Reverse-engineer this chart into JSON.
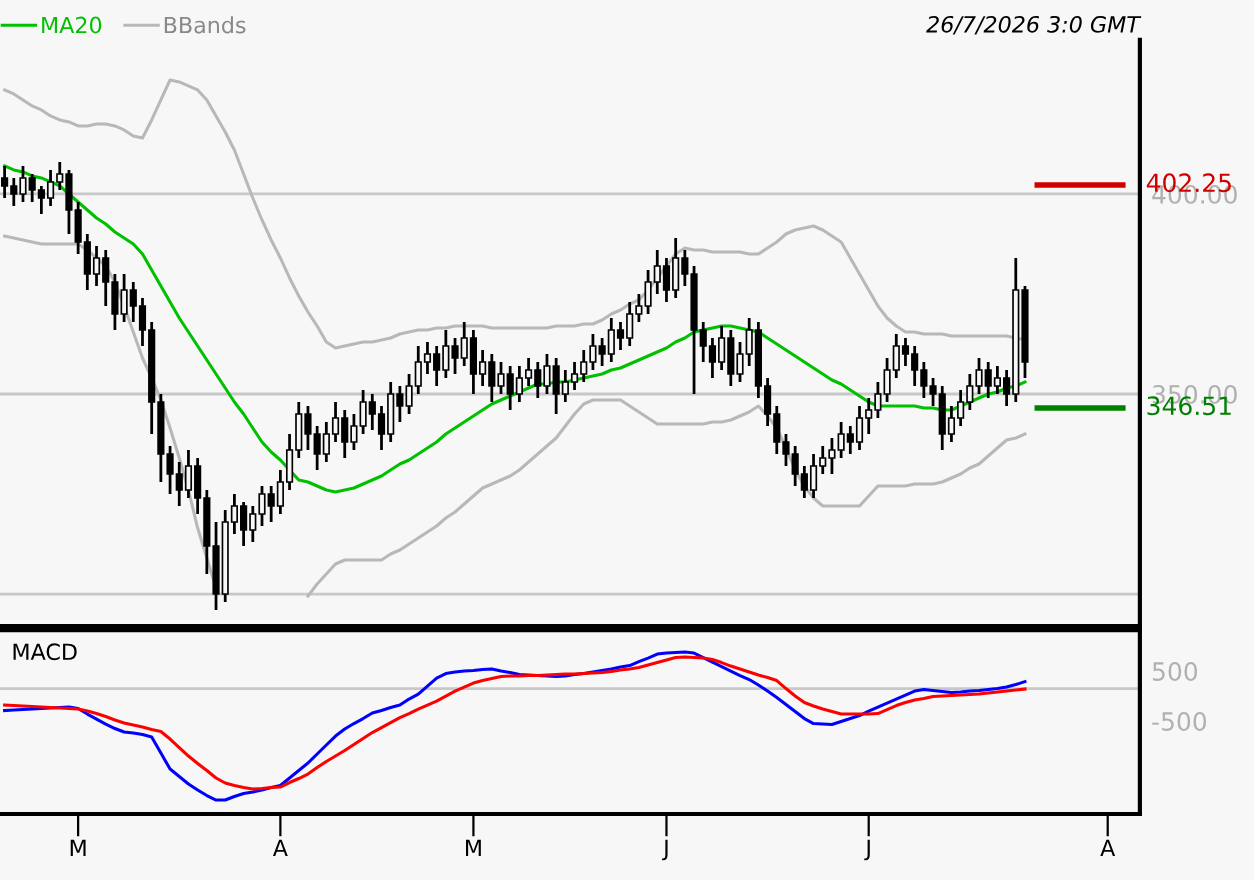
{
  "chart_data": [
    {
      "type": "candlestick",
      "annotations": [
        "26/7/2026 3:0 GMT"
      ],
      "categories": [
        null,
        null,
        null,
        null,
        null,
        null,
        null,
        null,
        null,
        null,
        null,
        null,
        null,
        null,
        null,
        null,
        null,
        null,
        null,
        null,
        null,
        null,
        null,
        null,
        null,
        null,
        null,
        null,
        null,
        null,
        null,
        null,
        null,
        null,
        null,
        null,
        null,
        null,
        null,
        null,
        null,
        null,
        null,
        null,
        null,
        null,
        null,
        null,
        null,
        null,
        null,
        null,
        null,
        null,
        null,
        null,
        null,
        null,
        null,
        null,
        null,
        null,
        null,
        null,
        null,
        null,
        null,
        null,
        null,
        null,
        null,
        null,
        null,
        null,
        null,
        null,
        null,
        null,
        null,
        null,
        null,
        null,
        null,
        null,
        null,
        null,
        null,
        null,
        null,
        null,
        null,
        null,
        null,
        null,
        null,
        null,
        null,
        null,
        null,
        null,
        null,
        null,
        null,
        null,
        null,
        null,
        null,
        null,
        null,
        null,
        null,
        null,
        null,
        null,
        null,
        null,
        null,
        null,
        null,
        null,
        null,
        null,
        null,
        null
      ],
      "ohlc": [
        [
          404,
          407,
          399,
          402
        ],
        [
          402,
          404,
          397,
          400
        ],
        [
          400,
          407,
          398,
          404
        ],
        [
          404,
          405,
          398,
          401
        ],
        [
          401,
          402,
          395,
          399
        ],
        [
          399,
          406,
          397,
          403
        ],
        [
          403,
          408,
          401,
          405
        ],
        [
          405,
          406,
          390,
          396
        ],
        [
          396,
          398,
          385,
          388
        ],
        [
          388,
          390,
          376,
          380
        ],
        [
          380,
          387,
          377,
          384
        ],
        [
          384,
          386,
          372,
          378
        ],
        [
          378,
          380,
          366,
          370
        ],
        [
          370,
          380,
          368,
          376
        ],
        [
          376,
          378,
          368,
          372
        ],
        [
          372,
          374,
          362,
          366
        ],
        [
          366,
          368,
          340,
          348
        ],
        [
          348,
          350,
          328,
          335
        ],
        [
          335,
          337,
          325,
          330
        ],
        [
          330,
          333,
          322,
          326
        ],
        [
          326,
          336,
          324,
          332
        ],
        [
          332,
          334,
          320,
          324
        ],
        [
          324,
          326,
          305,
          312
        ],
        [
          312,
          318,
          296,
          300
        ],
        [
          300,
          321,
          298,
          318
        ],
        [
          318,
          325,
          315,
          322
        ],
        [
          322,
          323,
          312,
          316
        ],
        [
          316,
          322,
          313,
          320
        ],
        [
          320,
          327,
          317,
          325
        ],
        [
          325,
          327,
          318,
          322
        ],
        [
          322,
          331,
          320,
          328
        ],
        [
          328,
          340,
          326,
          336
        ],
        [
          336,
          348,
          334,
          345
        ],
        [
          345,
          347,
          336,
          340
        ],
        [
          340,
          342,
          331,
          335
        ],
        [
          335,
          343,
          333,
          340
        ],
        [
          340,
          348,
          338,
          344
        ],
        [
          344,
          346,
          334,
          338
        ],
        [
          338,
          345,
          336,
          342
        ],
        [
          342,
          351,
          340,
          348
        ],
        [
          348,
          350,
          341,
          345
        ],
        [
          345,
          347,
          336,
          340
        ],
        [
          340,
          353,
          338,
          350
        ],
        [
          350,
          352,
          343,
          347
        ],
        [
          347,
          355,
          345,
          352
        ],
        [
          352,
          362,
          350,
          358
        ],
        [
          358,
          363,
          355,
          360
        ],
        [
          360,
          362,
          352,
          356
        ],
        [
          356,
          366,
          354,
          362
        ],
        [
          362,
          364,
          355,
          359
        ],
        [
          359,
          368,
          357,
          364
        ],
        [
          364,
          366,
          350,
          355
        ],
        [
          355,
          361,
          352,
          358
        ],
        [
          358,
          360,
          348,
          352
        ],
        [
          352,
          358,
          350,
          355
        ],
        [
          355,
          357,
          346,
          350
        ],
        [
          350,
          357,
          348,
          354
        ],
        [
          354,
          359,
          352,
          356
        ],
        [
          356,
          358,
          349,
          352
        ],
        [
          352,
          360,
          350,
          357
        ],
        [
          357,
          359,
          345,
          350
        ],
        [
          350,
          356,
          348,
          353
        ],
        [
          353,
          358,
          351,
          355
        ],
        [
          355,
          361,
          353,
          358
        ],
        [
          358,
          365,
          356,
          362
        ],
        [
          362,
          364,
          357,
          360
        ],
        [
          360,
          369,
          358,
          366
        ],
        [
          366,
          368,
          361,
          364
        ],
        [
          364,
          373,
          362,
          370
        ],
        [
          370,
          375,
          368,
          372
        ],
        [
          372,
          381,
          370,
          378
        ],
        [
          378,
          386,
          375,
          382
        ],
        [
          382,
          384,
          373,
          376
        ],
        [
          376,
          389,
          374,
          384
        ],
        [
          384,
          386,
          377,
          380
        ],
        [
          380,
          382,
          350,
          366
        ],
        [
          366,
          368,
          358,
          362
        ],
        [
          362,
          364,
          354,
          358
        ],
        [
          358,
          367,
          356,
          364
        ],
        [
          364,
          366,
          352,
          355
        ],
        [
          355,
          363,
          353,
          360
        ],
        [
          360,
          369,
          357,
          366
        ],
        [
          366,
          368,
          349,
          352
        ],
        [
          352,
          354,
          342,
          345
        ],
        [
          345,
          347,
          335,
          338
        ],
        [
          338,
          340,
          332,
          335
        ],
        [
          335,
          337,
          327,
          330
        ],
        [
          330,
          332,
          324,
          326
        ],
        [
          326,
          335,
          324,
          332
        ],
        [
          332,
          337,
          330,
          334
        ],
        [
          334,
          339,
          330,
          336
        ],
        [
          336,
          343,
          334,
          340
        ],
        [
          340,
          342,
          335,
          338
        ],
        [
          338,
          347,
          336,
          344
        ],
        [
          344,
          349,
          340,
          346
        ],
        [
          346,
          353,
          344,
          350
        ],
        [
          350,
          359,
          348,
          356
        ],
        [
          356,
          365,
          354,
          362
        ],
        [
          362,
          364,
          357,
          360
        ],
        [
          360,
          362,
          352,
          356
        ],
        [
          356,
          358,
          349,
          352
        ],
        [
          352,
          354,
          347,
          350
        ],
        [
          350,
          352,
          336,
          340
        ],
        [
          340,
          347,
          338,
          344
        ],
        [
          344,
          351,
          342,
          348
        ],
        [
          348,
          355,
          346,
          352
        ],
        [
          352,
          359,
          350,
          356
        ],
        [
          356,
          358,
          349,
          352
        ],
        [
          352,
          357,
          350,
          354
        ],
        [
          354,
          356,
          347,
          350
        ],
        [
          350,
          384,
          348,
          376
        ],
        [
          376,
          377,
          354,
          358
        ],
        null,
        null,
        null,
        null,
        null,
        null,
        null,
        null,
        null,
        null,
        null,
        null
      ],
      "series": [
        {
          "name": "MA20",
          "type": "line",
          "color": "#00c000",
          "values": [
            407,
            406,
            405.5,
            404.5,
            404,
            403,
            402,
            400,
            398,
            396,
            394,
            392.5,
            390.5,
            389,
            387.5,
            385,
            381,
            377,
            373,
            369,
            365.5,
            362,
            358.5,
            355,
            351.5,
            348,
            345,
            341.5,
            338,
            335.5,
            333.5,
            331,
            328.5,
            328,
            327,
            326,
            325.5,
            326,
            326.5,
            327.5,
            328.5,
            329.5,
            331,
            332.5,
            333.5,
            335,
            336.5,
            338,
            340,
            341.5,
            343,
            344.5,
            346,
            347.5,
            348.5,
            349.5,
            350.5,
            351.5,
            352.5,
            352.5,
            353,
            353,
            353.5,
            354,
            354.5,
            355,
            356,
            356.5,
            357.5,
            358.5,
            359.5,
            360.5,
            361.5,
            363,
            364,
            365.5,
            366,
            366.5,
            367,
            367,
            366.5,
            366,
            365.5,
            364,
            362.5,
            361,
            359.5,
            358,
            356.5,
            355,
            353.5,
            352.5,
            351,
            349.5,
            348,
            347,
            347,
            347,
            347,
            347,
            346.5,
            346.5,
            346,
            346,
            347,
            348,
            349,
            350,
            350.5,
            351.5,
            352,
            353,
            null,
            null,
            null,
            null,
            null,
            null,
            null,
            null,
            null,
            null,
            null,
            null
          ]
        },
        {
          "name": "BBands",
          "type": "line",
          "color": "#b8b8b8",
          "values": [
            426,
            425,
            423.5,
            422,
            421,
            419.5,
            418.5,
            418,
            417,
            417,
            417.5,
            417.5,
            417,
            416,
            414.5,
            414,
            418.5,
            423.5,
            428.5,
            428,
            427,
            426,
            423.5,
            419.5,
            415.5,
            411,
            405,
            399,
            393.5,
            388.5,
            384,
            379,
            374.5,
            370.5,
            367,
            363,
            361.5,
            362,
            362.5,
            363,
            363,
            363.5,
            364,
            365,
            365.5,
            366,
            366,
            366.5,
            366.5,
            367,
            367,
            367,
            367,
            366.5,
            366.5,
            366.5,
            366.5,
            366.5,
            366.5,
            366.5,
            367,
            367,
            367,
            367.5,
            367.5,
            368.5,
            370,
            371,
            372.5,
            373.5,
            376,
            379,
            382,
            385,
            386.5,
            386,
            386,
            385.5,
            385.5,
            385.5,
            385.5,
            385,
            385,
            386.5,
            388,
            390,
            391,
            391.5,
            392,
            391,
            389.5,
            388,
            384,
            380,
            376,
            372,
            369,
            367,
            365.5,
            365.5,
            365,
            365,
            365,
            364.5,
            364.5,
            364.5,
            364.5,
            364.5,
            364.5,
            364.5,
            364,
            363.5,
            null,
            null,
            null,
            null,
            null,
            null,
            null,
            null,
            null,
            null,
            null,
            null
          ]
        },
        {
          "type": "line",
          "color": "#b8b8b8",
          "values": [
            389.5,
            389,
            388.5,
            388,
            387.5,
            387.5,
            387.5,
            387.5,
            387.5,
            386,
            384,
            382,
            378,
            372,
            365.5,
            359,
            354,
            348.5,
            341.5,
            334,
            326,
            316.5,
            309,
            301.5,
            null,
            null,
            null,
            null,
            null,
            null,
            null,
            null,
            null,
            299.5,
            302.5,
            305,
            307.5,
            308.5,
            308.5,
            308.5,
            308.5,
            308.5,
            310,
            311,
            312.5,
            314,
            315.5,
            317,
            319,
            320.5,
            322.5,
            324.5,
            326.5,
            327.5,
            328.5,
            329.5,
            331,
            333,
            335,
            337,
            339,
            342,
            345,
            347.5,
            348.5,
            348.5,
            348.5,
            348.5,
            347,
            345.5,
            344,
            342.5,
            342.5,
            342.5,
            342.5,
            342.5,
            342.5,
            343,
            343,
            343.5,
            344.5,
            345.5,
            347,
            344.5,
            341.5,
            336.5,
            331,
            327,
            324,
            322,
            322,
            322,
            322,
            322,
            324.5,
            327,
            327,
            327,
            327,
            327.5,
            327.5,
            327.5,
            328,
            329,
            330,
            331.5,
            332.5,
            334.5,
            336.5,
            338.5,
            339,
            340,
            null,
            null,
            null,
            null,
            null,
            null,
            null,
            null,
            null,
            null,
            null,
            null
          ]
        }
      ],
      "ref_lines": [
        {
          "axis": "y",
          "value": 402.25,
          "label": "402.25",
          "color": "#d00000"
        },
        {
          "axis": "y",
          "value": 346.51,
          "label": "346.51",
          "color": "#008000"
        }
      ],
      "ylim": [
        292,
        438.5
      ],
      "yticks": [
        {
          "value": 300,
          "label": null
        },
        {
          "value": 350,
          "label": "350.00"
        },
        {
          "value": 400,
          "label": "400.00"
        }
      ],
      "grid": "y",
      "legend": "top left",
      "tick_labels": "y"
    },
    {
      "type": "line",
      "title": "MACD",
      "categories": [
        null,
        null,
        null,
        null,
        null,
        null,
        null,
        null,
        "M",
        null,
        null,
        null,
        null,
        null,
        null,
        null,
        null,
        null,
        null,
        null,
        null,
        null,
        null,
        null,
        null,
        null,
        null,
        null,
        null,
        null,
        "A",
        null,
        null,
        null,
        null,
        null,
        null,
        null,
        null,
        null,
        null,
        null,
        null,
        null,
        null,
        null,
        null,
        null,
        null,
        null,
        null,
        "M",
        null,
        null,
        null,
        null,
        null,
        null,
        null,
        null,
        null,
        null,
        null,
        null,
        null,
        null,
        null,
        null,
        null,
        null,
        null,
        null,
        "J",
        null,
        null,
        null,
        null,
        null,
        null,
        null,
        null,
        null,
        null,
        null,
        null,
        null,
        null,
        null,
        null,
        null,
        null,
        null,
        null,
        null,
        "J",
        null,
        null,
        null,
        null,
        null,
        null,
        null,
        null,
        null,
        null,
        null,
        null,
        null,
        null,
        null,
        null,
        null,
        null,
        null,
        null,
        null,
        null,
        null,
        null,
        null,
        "A",
        null,
        null,
        null
      ],
      "series": [
        {
          "color": "#0000ff",
          "values": [
            -290,
            -280,
            -270,
            -260,
            -250,
            -240,
            -230,
            -220,
            -250,
            -360,
            -460,
            -560,
            -650,
            -720,
            -740,
            -770,
            -820,
            -1140,
            -1460,
            -1610,
            -1760,
            -1880,
            -1990,
            -2080,
            -2080,
            -2010,
            -1950,
            -1920,
            -1880,
            -1830,
            -1790,
            -1640,
            -1490,
            -1340,
            -1160,
            -980,
            -800,
            -660,
            -550,
            -450,
            -340,
            -290,
            -230,
            -180,
            -60,
            40,
            200,
            360,
            450,
            480,
            500,
            510,
            530,
            540,
            500,
            470,
            430,
            420,
            410,
            400,
            390,
            400,
            430,
            450,
            480,
            510,
            540,
            580,
            610,
            690,
            760,
            840,
            860,
            870,
            880,
            860,
            770,
            680,
            590,
            500,
            410,
            330,
            220,
            100,
            -30,
            -170,
            -310,
            -450,
            -550,
            -560,
            -570,
            -510,
            -450,
            -390,
            -300,
            -220,
            -140,
            -60,
            20,
            100,
            130,
            110,
            90,
            70,
            80,
            100,
            110,
            130,
            150,
            180,
            230,
            290,
            null,
            null,
            null,
            null,
            null,
            null,
            null,
            null,
            null,
            null,
            null,
            null
          ]
        },
        {
          "color": "#ff0000",
          "values": [
            -180,
            -190,
            -200,
            -210,
            -220,
            -230,
            -240,
            -250,
            -260,
            -300,
            -350,
            -410,
            -480,
            -540,
            -580,
            -620,
            -670,
            -710,
            -860,
            -1030,
            -1200,
            -1350,
            -1490,
            -1640,
            -1740,
            -1790,
            -1830,
            -1860,
            -1850,
            -1830,
            -1820,
            -1730,
            -1650,
            -1560,
            -1430,
            -1310,
            -1200,
            -1090,
            -970,
            -850,
            -730,
            -630,
            -530,
            -430,
            -350,
            -260,
            -180,
            -100,
            0,
            100,
            180,
            260,
            310,
            350,
            390,
            400,
            400,
            410,
            410,
            420,
            430,
            440,
            440,
            450,
            460,
            470,
            490,
            520,
            540,
            570,
            620,
            670,
            720,
            770,
            780,
            770,
            760,
            730,
            670,
            600,
            540,
            480,
            420,
            370,
            310,
            150,
            0,
            -130,
            -200,
            -260,
            -310,
            -360,
            -360,
            -360,
            -360,
            -350,
            -270,
            -190,
            -130,
            -80,
            -50,
            -10,
            0,
            10,
            20,
            30,
            40,
            60,
            80,
            100,
            120,
            140,
            null,
            null,
            null,
            null,
            null,
            null,
            null,
            null,
            null,
            null,
            null,
            null
          ]
        }
      ],
      "ref_lines": [
        {
          "axis": "y",
          "value": 150,
          "color": "#c8c8c8"
        }
      ],
      "ylim": [
        -2360,
        1320
      ],
      "yticks": [
        500,
        -500
      ]
    }
  ]
}
